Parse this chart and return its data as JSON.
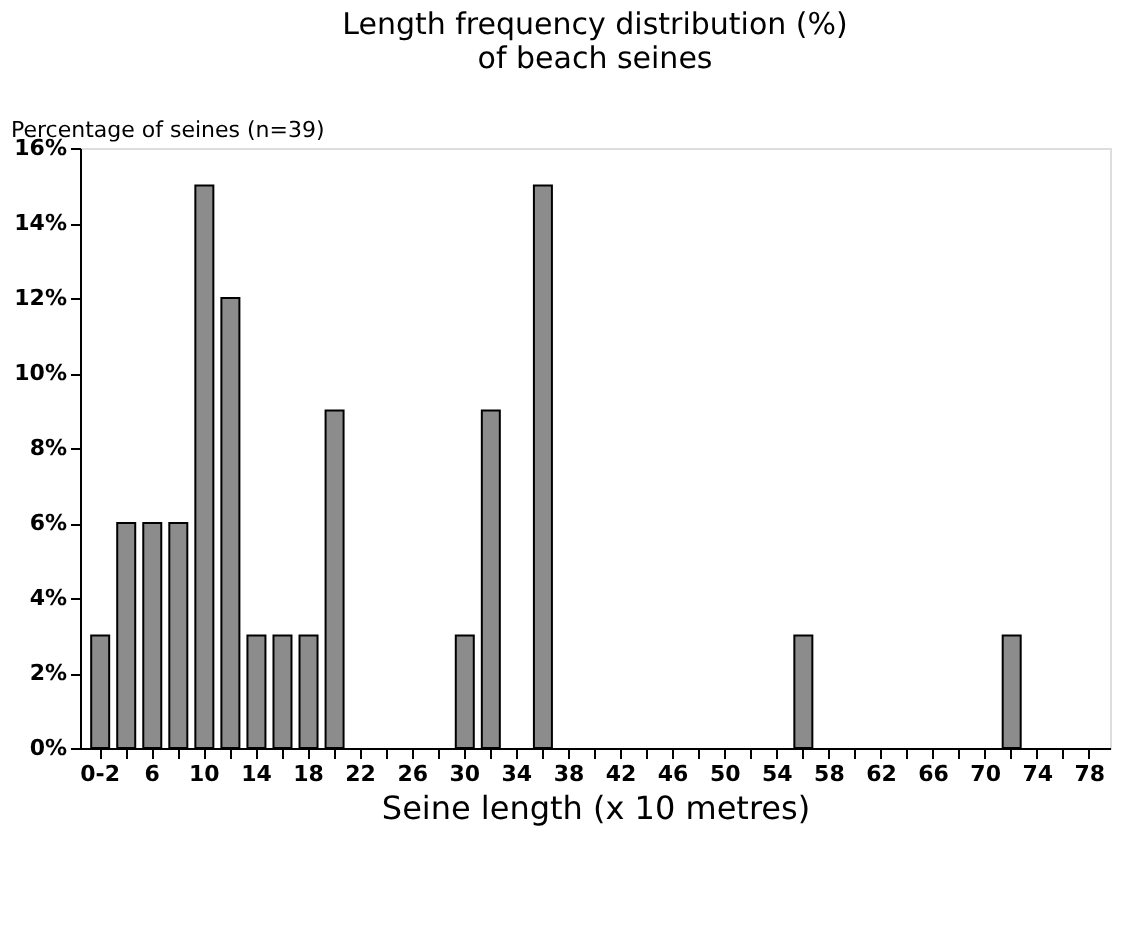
{
  "chart_data": {
    "type": "bar",
    "title": [
      "Length frequency distribution (%)",
      "of beach seines"
    ],
    "ylabel": "Percentage of seines (n=39)",
    "xlabel": "Seine length (x 10 metres)",
    "categories": [
      "0-2",
      null,
      "6",
      null,
      "10",
      null,
      "14",
      null,
      "18",
      null,
      "22",
      null,
      "26",
      null,
      "30",
      null,
      "34",
      null,
      "38",
      null,
      "42",
      null,
      "46",
      null,
      "50",
      null,
      "54",
      null,
      "58",
      null,
      "62",
      null,
      "66",
      null,
      "70",
      null,
      "74",
      null,
      "78"
    ],
    "values": [
      3,
      6,
      6,
      6,
      15,
      12,
      3,
      3,
      3,
      9,
      0,
      0,
      0,
      0,
      3,
      9,
      0,
      15,
      0,
      0,
      0,
      0,
      0,
      0,
      0,
      0,
      0,
      3,
      0,
      0,
      0,
      0,
      0,
      0,
      0,
      3,
      0,
      0,
      0
    ],
    "color": "#8c8c8c",
    "ylim": [
      0,
      16
    ],
    "yticks": [
      {
        "value": 0,
        "label": "0%"
      },
      {
        "value": 2,
        "label": "2%"
      },
      {
        "value": 4,
        "label": "4%"
      },
      {
        "value": 6,
        "label": "6%"
      },
      {
        "value": 8,
        "label": "8%"
      },
      {
        "value": 10,
        "label": "10%"
      },
      {
        "value": 12,
        "label": "12%"
      },
      {
        "value": 14,
        "label": "14%"
      },
      {
        "value": 16,
        "label": "16%"
      }
    ],
    "grid": false
  }
}
